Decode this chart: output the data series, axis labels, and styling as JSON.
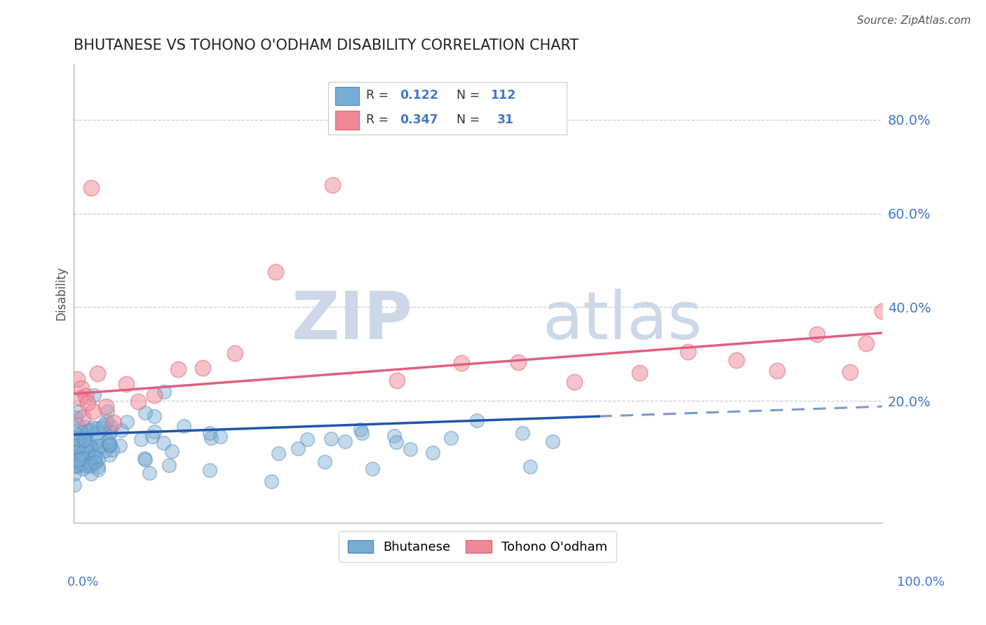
{
  "title": "BHUTANESE VS TOHONO O'ODHAM DISABILITY CORRELATION CHART",
  "source": "Source: ZipAtlas.com",
  "ylabel": "Disability",
  "xlim": [
    0.0,
    1.0
  ],
  "ylim": [
    -0.06,
    0.92
  ],
  "blue_scatter_color": "#7aadd4",
  "blue_scatter_edge": "#5588bb",
  "pink_scatter_color": "#f08898",
  "pink_scatter_edge": "#dd6677",
  "blue_line_color": "#2255aa",
  "pink_line_color": "#e06080",
  "background_color": "#ffffff",
  "watermark_zip": "ZIP",
  "watermark_atlas": "atlas",
  "watermark_color": "#ccd8e8",
  "grid_color": "#cccccc",
  "ytick_color": "#4477cc",
  "xlabel_color": "#4477cc",
  "legend_border": "#cccccc",
  "legend_R_color": "#000000",
  "legend_val_color": "#4477cc",
  "r_blue": "0.122",
  "n_blue": "112",
  "r_pink": "0.347",
  "n_pink": "31",
  "bhutanese_seed": 12345,
  "tohono_seed": 67890
}
